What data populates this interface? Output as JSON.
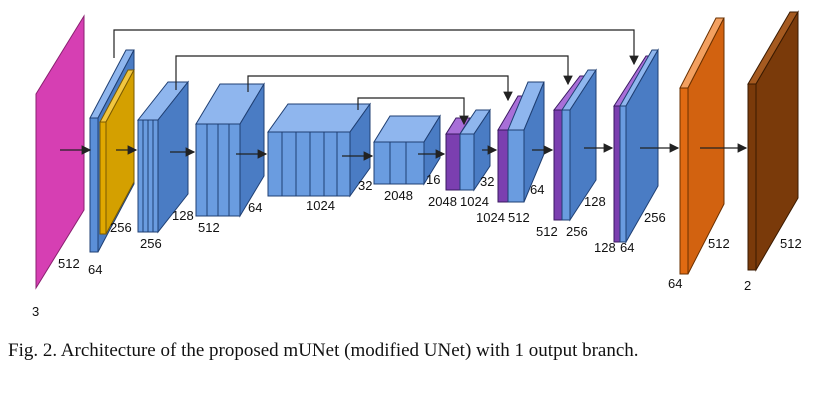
{
  "colors": {
    "input": "#d63fb3",
    "blue": "#5b8fd8",
    "gold": "#e0a800",
    "purple": "#7b3fb0",
    "orange": "#e06a12",
    "brown": "#7a3a0a",
    "edge": "#1f3f73"
  },
  "labels": {
    "input_channels": "3",
    "input_size": "512",
    "enc1_channels": "64",
    "enc1_gold_size": "256",
    "enc2_size": "256",
    "enc2_channels": "128",
    "enc3_size": "512",
    "enc3_channels": "64",
    "enc4_size": "1024",
    "enc4_channels": "32",
    "bottleneck_size": "2048",
    "bottleneck_channels": "16",
    "dec1_size": "2048",
    "dec1_size2": "1024",
    "dec1_channels": "32",
    "dec2_size": "1024",
    "dec2_size2": "512",
    "dec2_channels": "64",
    "dec3_size": "512",
    "dec3_size2": "256",
    "dec3_channels": "128",
    "dec4_size": "128",
    "dec4_size2": "64",
    "dec4_channels": "256",
    "out1_channels": "64",
    "out1_size": "512",
    "out2_channels": "2",
    "out2_size": "512"
  },
  "caption": "Fig. 2. Architecture of the proposed mUNet (modified UNet) with 1 output branch."
}
